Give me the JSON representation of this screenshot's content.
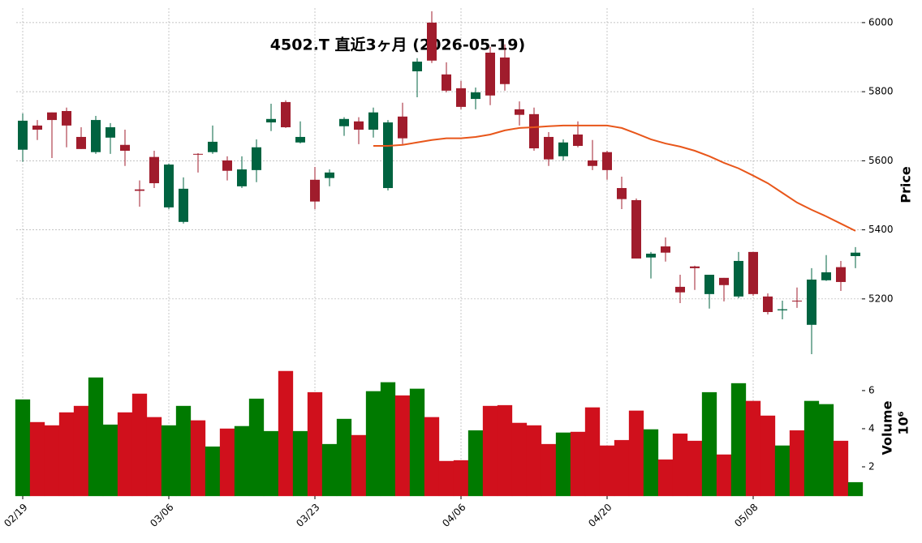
{
  "chart_data": {
    "type": "candlestick",
    "title": "4502.T  直近3ヶ月 (2026-05-19)",
    "ylabel": "Price",
    "categories": [
      "02/19",
      null,
      null,
      null,
      null,
      null,
      null,
      null,
      null,
      null,
      "03/06",
      null,
      null,
      null,
      null,
      null,
      null,
      null,
      null,
      null,
      "03/23",
      null,
      null,
      null,
      null,
      null,
      null,
      null,
      null,
      null,
      "04/06",
      null,
      null,
      null,
      null,
      null,
      null,
      null,
      null,
      null,
      "04/20",
      null,
      null,
      null,
      null,
      null,
      null,
      null,
      null,
      null,
      "05/08",
      null,
      null,
      null,
      null,
      null,
      null,
      null
    ],
    "open": [
      5632,
      5702,
      5740,
      5744,
      5669,
      5625,
      5667,
      5646,
      5517,
      5611,
      5465,
      5423,
      5620,
      5625,
      5601,
      5526,
      5573,
      5711,
      5770,
      5653,
      5545,
      5550,
      5700,
      5714,
      5690,
      5521,
      5728,
      5859,
      6000,
      5850,
      5810,
      5779,
      5913,
      5899,
      5749,
      5735,
      5669,
      5613,
      5676,
      5601,
      5625,
      5521,
      5486,
      5320,
      5352,
      5235,
      5294,
      5214,
      5261,
      5207,
      5336,
      5207,
      5167,
      5195,
      5125,
      5254,
      5292,
      5324
    ],
    "high": [
      5737,
      5718,
      5740,
      5754,
      5697,
      5730,
      5709,
      5690,
      5543,
      5629,
      5592,
      5552,
      5622,
      5702,
      5613,
      5613,
      5662,
      5765,
      5775,
      5714,
      5582,
      5575,
      5726,
      5726,
      5754,
      5718,
      5768,
      5897,
      6033,
      5885,
      5831,
      5812,
      5930,
      5937,
      5772,
      5754,
      5683,
      5662,
      5714,
      5660,
      5629,
      5554,
      5491,
      5336,
      5378,
      5270,
      5296,
      5270,
      5261,
      5336,
      5336,
      5216,
      5195,
      5233,
      5289,
      5327,
      5310,
      5350
    ],
    "low": [
      5597,
      5660,
      5608,
      5639,
      5634,
      5620,
      5620,
      5585,
      5467,
      5521,
      5460,
      5418,
      5566,
      5620,
      5543,
      5521,
      5538,
      5686,
      5695,
      5650,
      5460,
      5526,
      5672,
      5648,
      5667,
      5514,
      5648,
      5784,
      5883,
      5798,
      5749,
      5749,
      5761,
      5803,
      5702,
      5629,
      5585,
      5601,
      5639,
      5573,
      5545,
      5460,
      5317,
      5259,
      5308,
      5188,
      5226,
      5172,
      5193,
      5202,
      5209,
      5155,
      5141,
      5174,
      5040,
      5252,
      5223,
      5289
    ],
    "close": [
      5716,
      5690,
      5718,
      5702,
      5634,
      5718,
      5697,
      5629,
      5513,
      5535,
      5589,
      5519,
      5618,
      5655,
      5571,
      5575,
      5639,
      5721,
      5697,
      5669,
      5482,
      5566,
      5721,
      5690,
      5740,
      5711,
      5665,
      5887,
      5890,
      5803,
      5756,
      5798,
      5789,
      5822,
      5733,
      5636,
      5604,
      5653,
      5643,
      5585,
      5573,
      5489,
      5317,
      5331,
      5334,
      5219,
      5289,
      5270,
      5240,
      5310,
      5214,
      5162,
      5170,
      5193,
      5256,
      5277,
      5249,
      5334
    ],
    "up_color": "#006340",
    "down_color": "#a01c2c",
    "ma": {
      "color": "#e8561a",
      "values": [
        null,
        null,
        null,
        null,
        null,
        null,
        null,
        null,
        null,
        null,
        null,
        null,
        null,
        null,
        null,
        null,
        null,
        null,
        null,
        null,
        null,
        null,
        null,
        null,
        5643,
        5643,
        5646,
        5653,
        5660,
        5665,
        5665,
        5669,
        5676,
        5688,
        5695,
        5697,
        5700,
        5702,
        5702,
        5702,
        5702,
        5695,
        5679,
        5662,
        5650,
        5641,
        5629,
        5613,
        5594,
        5578,
        5557,
        5535,
        5507,
        5479,
        5458,
        5439,
        5418,
        5397
      ]
    },
    "ylim": [
      5033,
      6042
    ],
    "yticks": [
      5200,
      5400,
      5600,
      5800,
      6000
    ],
    "grid": true,
    "volume": {
      "ylabel": "Volume",
      "scale_label": "10⁶",
      "up_color": "#007a00",
      "down_color": "#d0101c",
      "values": [
        5.53,
        4.34,
        4.17,
        4.85,
        5.19,
        6.68,
        4.21,
        4.85,
        5.83,
        4.6,
        4.17,
        5.19,
        4.43,
        3.06,
        4.0,
        4.13,
        5.57,
        3.87,
        7.02,
        3.87,
        5.91,
        3.19,
        4.51,
        3.66,
        5.96,
        6.43,
        5.74,
        6.09,
        4.6,
        2.3,
        2.34,
        3.91,
        5.19,
        5.23,
        4.3,
        4.17,
        3.19,
        3.79,
        3.83,
        5.11,
        3.11,
        3.4,
        4.94,
        3.96,
        2.38,
        3.74,
        3.36,
        5.91,
        2.64,
        6.38,
        5.45,
        4.68,
        3.11,
        3.91,
        5.45,
        5.28,
        3.36,
        1.19
      ],
      "ylim": [
        0.47,
        7.57
      ],
      "yticks": [
        2,
        4,
        6
      ]
    }
  }
}
